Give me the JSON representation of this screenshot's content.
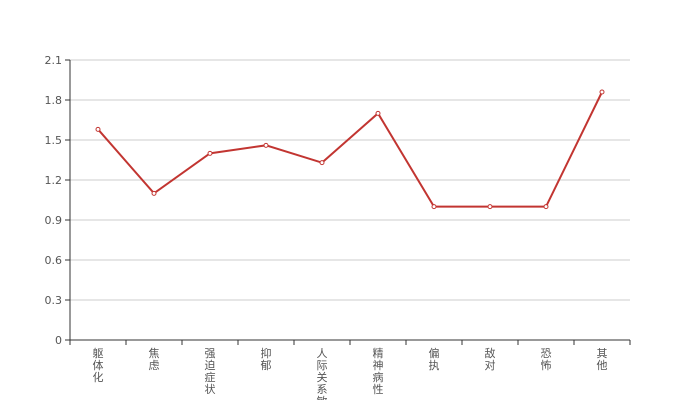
{
  "chart_data": {
    "type": "line",
    "categories": [
      "躯体化",
      "焦虑",
      "强迫症状",
      "抑郁",
      "人际关系敏感",
      "精神病性",
      "偏执",
      "敌对",
      "恐怖",
      "其他"
    ],
    "series": [
      {
        "values": [
          1.58,
          1.1,
          1.4,
          1.46,
          1.33,
          1.7,
          1.0,
          1.0,
          1.0,
          1.86
        ]
      }
    ],
    "ylim": [
      0,
      2.1
    ],
    "yticks": [
      "0",
      "0.3",
      "0.6",
      "0.9",
      "1.2",
      "1.5",
      "1.8",
      "2.1"
    ],
    "grid": true,
    "colors": {
      "line": "#c23531",
      "grid": "#cccccc",
      "axis": "#333333"
    }
  }
}
